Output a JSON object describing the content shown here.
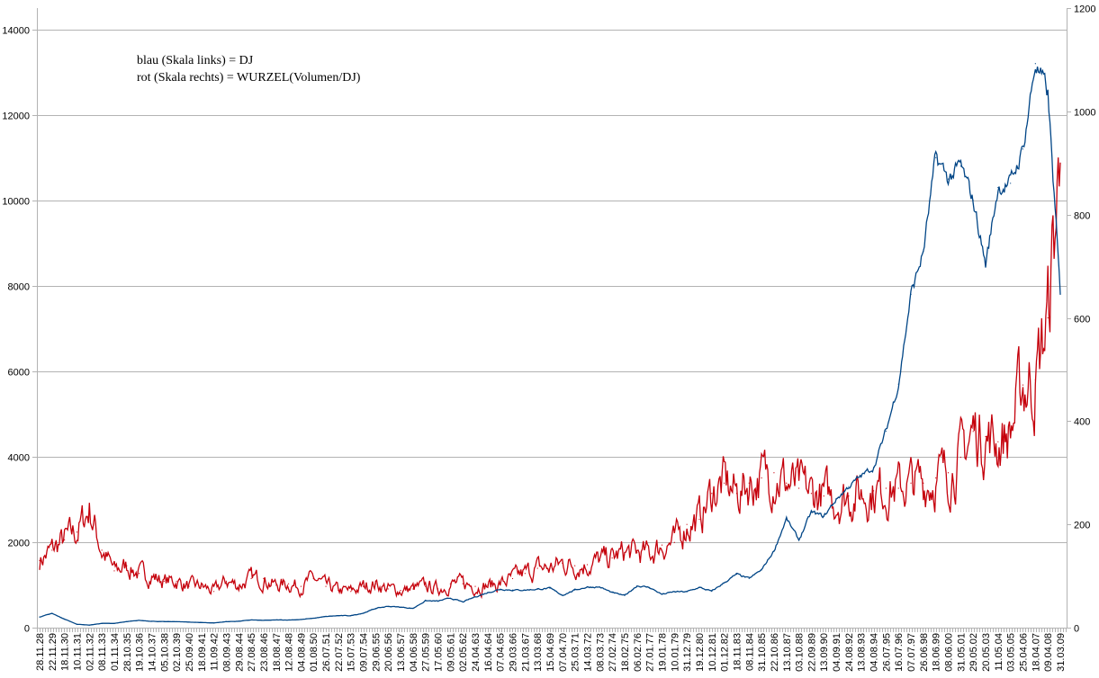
{
  "chart_data": {
    "type": "line",
    "title": "",
    "annotation": {
      "line1": "blau (Skala links) = DJ",
      "line2": "rot (Skala rechts) = WURZEL(Volumen/DJ)"
    },
    "grid": true,
    "y_left": {
      "ticks": [
        0,
        2000,
        4000,
        6000,
        8000,
        10000,
        12000,
        14000
      ],
      "range": [
        0,
        14500
      ]
    },
    "y_right": {
      "ticks": [
        0,
        200,
        400,
        600,
        800,
        1000,
        1200
      ],
      "range": [
        0,
        1200
      ]
    },
    "categories": [
      "28.11.28",
      "22.11.29",
      "18.11.30",
      "10.11.31",
      "02.11.32",
      "08.11.33",
      "01.11.34",
      "28.10.35",
      "19.10.36",
      "14.10.37",
      "05.10.38",
      "02.10.39",
      "25.09.40",
      "18.09.41",
      "11.09.42",
      "08.09.43",
      "29.08.44",
      "27.08.45",
      "23.08.46",
      "18.08.47",
      "12.08.48",
      "04.08.49",
      "01.08.50",
      "26.07.51",
      "22.07.52",
      "15.07.53",
      "09.07.54",
      "29.06.55",
      "20.06.56",
      "13.06.57",
      "04.06.58",
      "27.05.59",
      "17.05.60",
      "09.05.61",
      "02.05.62",
      "24.04.63",
      "16.04.64",
      "07.04.65",
      "29.03.66",
      "21.03.67",
      "13.03.68",
      "15.04.69",
      "07.04.70",
      "25.03.71",
      "14.03.72",
      "08.03.73",
      "27.02.74",
      "18.02.75",
      "06.02.76",
      "27.01.77",
      "19.01.78",
      "10.01.79",
      "31.12.79",
      "19.12.80",
      "10.12.81",
      "01.12.82",
      "18.11.83",
      "08.11.84",
      "31.10.85",
      "22.10.86",
      "13.10.87",
      "03.10.88",
      "22.09.89",
      "13.09.90",
      "04.09.91",
      "24.08.92",
      "13.08.93",
      "04.08.94",
      "26.07.95",
      "16.07.96",
      "07.07.97",
      "26.06.98",
      "18.06.99",
      "08.06.00",
      "31.05.01",
      "29.05.02",
      "20.05.03",
      "11.05.04",
      "03.05.05",
      "25.04.06",
      "18.04.07",
      "09.04.08",
      "31.03.09"
    ],
    "series": [
      {
        "axis": "left",
        "color": "#004586",
        "values": [
          250,
          330,
          200,
          80,
          60,
          100,
          100,
          140,
          170,
          150,
          140,
          140,
          130,
          120,
          110,
          140,
          150,
          180,
          170,
          180,
          180,
          190,
          220,
          260,
          280,
          280,
          340,
          450,
          500,
          480,
          450,
          630,
          620,
          690,
          600,
          720,
          820,
          900,
          880,
          880,
          900,
          920,
          760,
          880,
          950,
          950,
          820,
          750,
          980,
          940,
          780,
          840,
          840,
          940,
          850,
          1050,
          1250,
          1150,
          1350,
          1800,
          2550,
          2050,
          2700,
          2600,
          3000,
          3300,
          3550,
          3750,
          4600,
          5700,
          7800,
          8800,
          11000,
          10500,
          10800,
          10000,
          8500,
          10300,
          10400,
          11200,
          13200,
          12500,
          7800
        ]
      },
      {
        "axis": "right",
        "color": "#c5000b",
        "values": [
          130,
          150,
          170,
          185,
          230,
          150,
          110,
          120,
          105,
          100,
          90,
          90,
          80,
          80,
          70,
          90,
          82,
          95,
          95,
          82,
          85,
          80,
          95,
          80,
          72,
          70,
          80,
          85,
          75,
          72,
          75,
          80,
          75,
          85,
          85,
          80,
          82,
          85,
          95,
          105,
          115,
          115,
          125,
          120,
          122,
          130,
          135,
          145,
          145,
          142,
          160,
          165,
          200,
          210,
          260,
          280,
          260,
          280,
          290,
          300,
          280,
          270,
          260,
          255,
          250,
          255,
          260,
          265,
          270,
          270,
          280,
          280,
          290,
          300,
          330,
          380,
          370,
          360,
          380,
          470,
          480,
          600,
          900
        ]
      }
    ]
  }
}
